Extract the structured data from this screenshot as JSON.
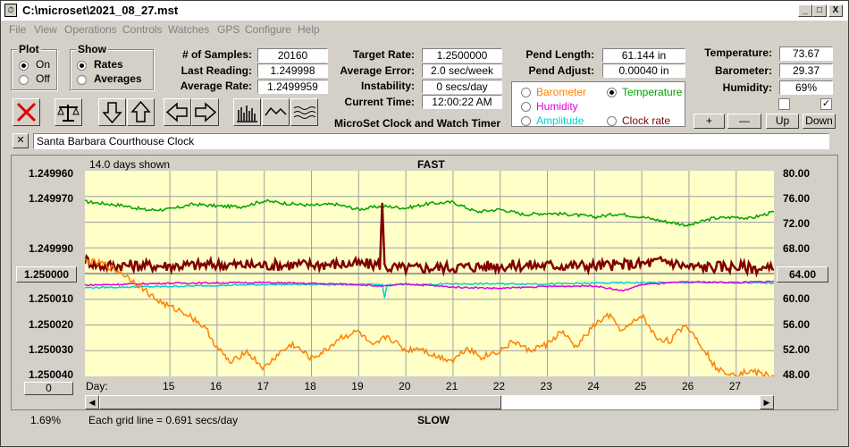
{
  "window": {
    "title": "C:\\microset\\2021_08_27.mst",
    "app_icon": "clock-app-icon",
    "minimize": "_",
    "maximize": "□",
    "close": "X"
  },
  "menu": [
    "File",
    "View",
    "Operations",
    "Controls",
    "Watches",
    "GPS",
    "Configure",
    "Help"
  ],
  "plot_group": {
    "title": "Plot",
    "options": [
      "On",
      "Off"
    ],
    "selected": "On"
  },
  "show_group": {
    "title": "Show",
    "options": [
      "Rates",
      "Averages"
    ],
    "selected": "Rates"
  },
  "stats": {
    "samples_label": "# of Samples:",
    "samples": "20160",
    "last_label": "Last Reading:",
    "last": "1.249998",
    "avg_label": "Average Rate:",
    "avg": "1.2499959",
    "target_label": "Target Rate:",
    "target": "1.2500000",
    "avgerr_label": "Average Error:",
    "avgerr": "2.0 sec/week",
    "instab_label": "Instability:",
    "instab": "0 secs/day",
    "time_label": "Current Time:",
    "time": "12:00:22 AM",
    "pend_label": "Pend Length:",
    "pend": "61.144 in",
    "adjust_label": "Pend Adjust:",
    "adjust": "0.00040 in",
    "temp_label": "Temperature:",
    "temp": "73.67",
    "baro_label": "Barometer:",
    "baro": "29.37",
    "hum_label": "Humidity:",
    "hum": "69%"
  },
  "app_name": "MicroSet Clock and Watch Timer",
  "series_options": [
    {
      "label": "Barometer",
      "color": "#ff8000",
      "selected": false
    },
    {
      "label": "Temperature",
      "color": "#00a000",
      "selected": true
    },
    {
      "label": "Humidity",
      "color": "#e000e0",
      "selected": false
    },
    {
      "label": "Clock rate",
      "color": "#800000",
      "selected": false
    },
    {
      "label": "Amplitude",
      "color": "#00d0d0",
      "selected": false
    }
  ],
  "sensor_buttons": [
    "+",
    "—",
    "Up",
    "Down"
  ],
  "checkboxes": [
    {
      "checked": false
    },
    {
      "checked": true
    }
  ],
  "watch_name": "Santa Barbara Courthouse Clock",
  "toolbar_icons": [
    "delete-icon",
    "balance-scale-icon",
    "arrow-down-icon",
    "arrow-up-icon",
    "arrow-left-icon",
    "arrow-right-icon",
    "bar-graph-icon",
    "wave-icon",
    "multi-wave-icon"
  ],
  "graph": {
    "days_shown": "14.0 days shown",
    "top_label": "FAST",
    "bottom_label": "SLOW",
    "grid_note": "Each grid line = 0.691 secs/day",
    "percent": "1.69%",
    "left_button": "1.250000",
    "right_button": "64.00",
    "zero_button": "0",
    "day_label": "Day:"
  },
  "chart_data": {
    "type": "line",
    "left_axis": {
      "ticks": [
        "1.249960",
        "1.249970",
        "1.249990",
        "1.250000",
        "1.250010",
        "1.250020",
        "1.250030",
        "1.250040"
      ]
    },
    "right_axis": {
      "ticks": [
        "80.00",
        "76.00",
        "72.00",
        "68.00",
        "60.00",
        "56.00",
        "52.00",
        "48.00"
      ],
      "range": [
        48,
        80
      ]
    },
    "x_ticks": [
      "15",
      "16",
      "17",
      "18",
      "19",
      "20",
      "21",
      "22",
      "23",
      "24",
      "25",
      "26",
      "27"
    ],
    "x_range": [
      13.2,
      27.8
    ],
    "series": [
      {
        "name": "Temperature",
        "color": "#00a000",
        "x": [
          13.2,
          14,
          14.5,
          15,
          15.5,
          16,
          16.5,
          17,
          17.5,
          18,
          18.5,
          19,
          19.5,
          20,
          20.5,
          21,
          21.5,
          22,
          22.5,
          23,
          23.5,
          24,
          24.5,
          25,
          25.5,
          26,
          26.5,
          27,
          27.3,
          27.8
        ],
        "values": [
          75.2,
          74.6,
          73.9,
          74.0,
          74.8,
          74.5,
          74.4,
          75.3,
          74.9,
          74.6,
          74.8,
          74.0,
          74.5,
          74.2,
          74.9,
          75.1,
          73.6,
          74.0,
          73.2,
          73.4,
          73.2,
          72.8,
          73.3,
          72.8,
          72.1,
          71.5,
          72.6,
          72.8,
          72.6,
          73.6
        ]
      },
      {
        "name": "Clock rate",
        "color": "#800000",
        "x": [
          13.2,
          13.5,
          14,
          15,
          16,
          17,
          18,
          19,
          19.45,
          19.5,
          19.55,
          20,
          21,
          22,
          23,
          24,
          25,
          25.5,
          26,
          27,
          27.8
        ],
        "values": [
          66.2,
          65.2,
          65.3,
          65.2,
          65.4,
          65.3,
          65.4,
          65.5,
          65.4,
          75.0,
          65.0,
          64.8,
          65.0,
          65.2,
          65.3,
          65.2,
          65.5,
          66.0,
          65.0,
          65.1,
          64.6
        ]
      },
      {
        "name": "Amplitude",
        "color": "#00d0d0",
        "x": [
          13.2,
          15,
          17,
          19,
          19.5,
          19.55,
          19.6,
          21,
          23,
          25,
          27,
          27.8
        ],
        "values": [
          61.8,
          62.0,
          62.3,
          62.3,
          62.3,
          60.2,
          62.2,
          62.4,
          62.4,
          62.6,
          62.6,
          62.5
        ]
      },
      {
        "name": "Humidity",
        "color": "#e000e0",
        "x": [
          13.2,
          15,
          17,
          19,
          19.5,
          20,
          21,
          22,
          23,
          24,
          24.6,
          25,
          26,
          27,
          27.8
        ],
        "values": [
          62.2,
          62.5,
          62.6,
          62.3,
          62.0,
          62.4,
          61.9,
          61.7,
          62.0,
          62.1,
          61.3,
          62.3,
          62.7,
          62.6,
          62.8
        ]
      },
      {
        "name": "Barometer",
        "color": "#ff8000",
        "x": [
          13.2,
          13.6,
          14,
          14.3,
          14.7,
          15,
          15.3,
          15.6,
          15.8,
          16,
          16.3,
          16.6,
          17,
          17.3,
          17.6,
          18,
          18.3,
          18.6,
          19,
          19.3,
          19.6,
          20,
          20.3,
          20.6,
          21,
          21.3,
          21.6,
          22,
          22.3,
          22.6,
          23,
          23.3,
          23.6,
          24,
          24.3,
          24.6,
          25,
          25.3,
          25.6,
          25.9,
          26,
          26.3,
          26.6,
          27,
          27.3,
          27.8
        ],
        "values": [
          66.0,
          65.5,
          64.0,
          62.5,
          60.0,
          58.8,
          58.0,
          56.5,
          55.0,
          52.5,
          50.0,
          52.0,
          49.2,
          51.5,
          53.0,
          50.8,
          52.0,
          54.0,
          55.0,
          52.5,
          54.3,
          52.0,
          52.5,
          51.2,
          50.5,
          52.5,
          51.0,
          52.0,
          53.5,
          52.0,
          53.0,
          55.0,
          52.5,
          56.0,
          57.5,
          55.0,
          57.5,
          54.0,
          53.5,
          56.0,
          55.5,
          52.5,
          49.0,
          48.4,
          48.8,
          48.0
        ]
      }
    ],
    "reference_value": 64.0
  }
}
